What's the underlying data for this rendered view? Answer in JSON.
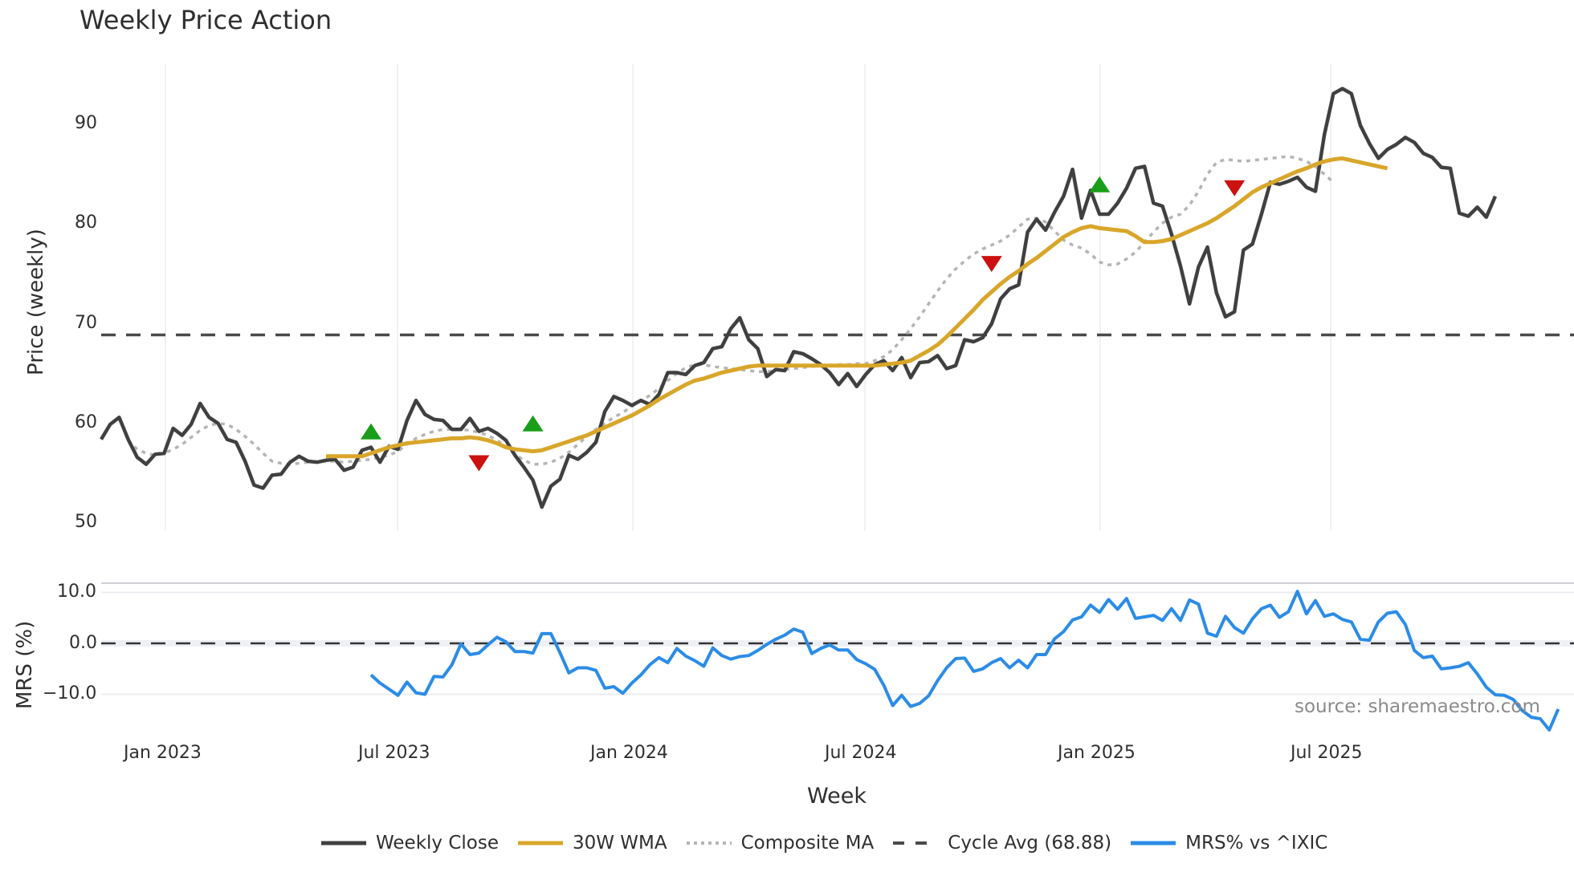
{
  "title": "Weekly Price Action",
  "source_note": "source: sharemaestro.com",
  "colors": {
    "close": "#404040",
    "wma": "#d9a62a",
    "composite": "#b5b5b5",
    "cycle": "#4a4a4a",
    "mrs": "#2b8ce6",
    "buy": "#1a9e1a",
    "sell": "#cc1111",
    "grid": "#ececf2"
  },
  "legend": [
    {
      "key": "close",
      "label": "Weekly Close",
      "style": "solid"
    },
    {
      "key": "wma",
      "label": "30W WMA",
      "style": "solid"
    },
    {
      "key": "composite",
      "label": "Composite MA",
      "style": "dot"
    },
    {
      "key": "cycle",
      "label": "Cycle Avg (68.88)",
      "style": "dash"
    },
    {
      "key": "mrs",
      "label": "MRS% vs ^IXIC",
      "style": "solid"
    }
  ],
  "chart_data": [
    {
      "type": "line",
      "title": "Weekly Price Action",
      "xlabel": "Week",
      "ylabel": "Price (weekly)",
      "ylim": [
        49,
        96
      ],
      "yticks": [
        50,
        60,
        70,
        80,
        90
      ],
      "xticks": [
        "Jan 2023",
        "Jul 2023",
        "Jan 2024",
        "Jul 2024",
        "Jan 2025",
        "Jul 2025"
      ],
      "grid": true,
      "x_start": "2022-11 (approx, week 0)",
      "weeks": 152,
      "cycle_avg": 68.88,
      "series": [
        {
          "name": "Weekly Close",
          "start_week": 0,
          "values": [
            58.4,
            59.9,
            60.6,
            58.4,
            56.6,
            55.9,
            56.9,
            57.0,
            59.5,
            58.8,
            59.9,
            62.0,
            60.6,
            60.0,
            58.4,
            58.1,
            56.2,
            53.8,
            53.5,
            54.8,
            54.9,
            56.1,
            56.7,
            56.2,
            56.1,
            56.3,
            56.4,
            55.3,
            55.6,
            57.3,
            57.6,
            56.1,
            57.7,
            57.4,
            60.3,
            62.3,
            60.9,
            60.4,
            60.3,
            59.4,
            59.4,
            60.5,
            59.2,
            59.5,
            59.0,
            58.3,
            56.8,
            55.6,
            54.3,
            51.6,
            53.7,
            54.4,
            56.8,
            56.4,
            57.1,
            58.1,
            61.2,
            62.7,
            62.3,
            61.8,
            62.3,
            61.9,
            62.9,
            65.1,
            65.1,
            64.9,
            65.8,
            66.1,
            67.5,
            67.7,
            69.5,
            70.6,
            68.4,
            67.5,
            64.7,
            65.4,
            65.3,
            67.2,
            67.0,
            66.5,
            65.9,
            65.1,
            63.9,
            65.0,
            63.7,
            64.9,
            65.9,
            66.3,
            65.3,
            66.6,
            64.6,
            66.1,
            66.2,
            66.8,
            65.5,
            65.8,
            68.4,
            68.2,
            68.6,
            70.0,
            72.5,
            73.5,
            73.9,
            79.2,
            80.5,
            79.4,
            81.2,
            82.8,
            85.5,
            80.6,
            83.4,
            81.0,
            81.0,
            82.1,
            83.6,
            85.6,
            85.8,
            82.1,
            81.8,
            79.0,
            75.8,
            72.0,
            75.7,
            77.7,
            73.1,
            70.7,
            71.2,
            77.4,
            78.0,
            81.0,
            84.2,
            84.0,
            84.3,
            84.7,
            83.7,
            83.3,
            89.0,
            93.1,
            93.6,
            93.1,
            89.9,
            88.1,
            86.6,
            87.5,
            88.0,
            88.7,
            88.2,
            87.1,
            86.7,
            85.7,
            85.6,
            81.1,
            80.8,
            81.7,
            80.7,
            82.8
          ]
        },
        {
          "name": "30W WMA",
          "start_week": 25,
          "values": [
            56.7,
            56.7,
            56.7,
            56.7,
            56.7,
            57.0,
            57.3,
            57.6,
            57.8,
            58.0,
            58.1,
            58.2,
            58.3,
            58.4,
            58.5,
            58.5,
            58.6,
            58.5,
            58.3,
            58.0,
            57.6,
            57.4,
            57.3,
            57.2,
            57.3,
            57.6,
            57.9,
            58.2,
            58.5,
            58.8,
            59.2,
            59.6,
            60.0,
            60.4,
            60.8,
            61.3,
            61.8,
            62.4,
            62.9,
            63.4,
            63.9,
            64.3,
            64.5,
            64.8,
            65.1,
            65.3,
            65.5,
            65.7,
            65.8,
            65.8,
            65.8,
            65.8,
            65.8,
            65.8,
            65.8,
            65.8,
            65.8,
            65.8,
            65.8,
            65.8,
            65.8,
            65.8,
            65.9,
            66.0,
            66.1,
            66.3,
            66.8,
            67.3,
            67.9,
            68.7,
            69.6,
            70.5,
            71.4,
            72.4,
            73.2,
            74.0,
            74.7,
            75.3,
            76.0,
            76.6,
            77.3,
            78.0,
            78.7,
            79.2,
            79.6,
            79.8,
            79.6,
            79.5,
            79.4,
            79.3,
            78.8,
            78.2,
            78.2,
            78.3,
            78.5,
            78.9,
            79.3,
            79.7,
            80.1,
            80.6,
            81.2,
            81.8,
            82.5,
            83.2,
            83.7,
            84.1,
            84.5,
            84.9,
            85.3,
            85.6,
            86.0,
            86.3,
            86.5,
            86.6,
            86.4,
            86.2,
            86.0,
            85.8,
            85.6
          ]
        },
        {
          "name": "Composite MA",
          "start_week": 3,
          "values": [
            58.3,
            57.4,
            57.0,
            56.8,
            57.0,
            57.4,
            57.9,
            58.6,
            59.3,
            59.8,
            60.0,
            59.9,
            59.4,
            58.7,
            57.9,
            57.0,
            56.2,
            56.0,
            55.9,
            56.0,
            56.1,
            56.2,
            56.2,
            56.2,
            56.1,
            56.2,
            56.3,
            56.4,
            56.6,
            56.8,
            57.2,
            57.9,
            58.5,
            58.9,
            59.2,
            59.4,
            59.4,
            59.4,
            59.3,
            59.1,
            58.8,
            58.3,
            57.7,
            56.9,
            56.3,
            55.9,
            55.9,
            56.1,
            56.5,
            57.1,
            57.9,
            58.7,
            59.4,
            60.0,
            60.6,
            61.1,
            61.7,
            62.3,
            62.8,
            63.5,
            64.3,
            65.0,
            65.6,
            65.9,
            65.9,
            65.7,
            65.6,
            65.5,
            65.4,
            65.3,
            65.2,
            65.2,
            65.3,
            65.4,
            65.5,
            65.6,
            65.7,
            65.8,
            65.8,
            65.9,
            65.9,
            66.0,
            66.0,
            66.3,
            66.7,
            67.4,
            68.4,
            69.5,
            70.7,
            72.0,
            73.3,
            74.5,
            75.5,
            76.3,
            77.0,
            77.5,
            77.9,
            78.3,
            78.9,
            79.7,
            80.5,
            80.6,
            80.2,
            79.3,
            78.4,
            77.9,
            77.6,
            77.0,
            76.2,
            75.9,
            76.0,
            76.5,
            77.2,
            78.2,
            79.2,
            80.1,
            80.7,
            81.0,
            81.9,
            83.3,
            85.0,
            86.2,
            86.5,
            86.4,
            86.3,
            86.4,
            86.5,
            86.6,
            86.7,
            86.8,
            86.6,
            86.3,
            85.8,
            85.0,
            84.2
          ]
        },
        {
          "name": "MRS% vs ^IXIC",
          "panel": "lower",
          "ylim": [
            -17.5,
            12
          ],
          "yticks": [
            -10.0,
            0.0,
            10.0
          ],
          "start_week": 30,
          "values": [
            -6.2,
            -7.8,
            -9.0,
            -10.2,
            -7.6,
            -9.7,
            -10.0,
            -6.5,
            -6.6,
            -4.2,
            -0.1,
            -2.2,
            -1.9,
            -0.3,
            1.2,
            0.3,
            -1.6,
            -1.6,
            -1.9,
            1.9,
            1.9,
            -1.8,
            -5.8,
            -4.8,
            -4.8,
            -5.3,
            -8.8,
            -8.5,
            -9.8,
            -7.8,
            -6.2,
            -4.2,
            -2.8,
            -3.8,
            -1.0,
            -2.5,
            -3.4,
            -4.5,
            -0.9,
            -2.4,
            -3.1,
            -2.6,
            -2.4,
            -1.4,
            -0.2,
            0.8,
            1.6,
            2.8,
            2.2,
            -2.0,
            -1.0,
            -0.3,
            -1.3,
            -1.3,
            -3.2,
            -4.0,
            -5.1,
            -8.2,
            -12.2,
            -10.2,
            -12.4,
            -11.8,
            -10.3,
            -7.3,
            -4.8,
            -3.0,
            -2.9,
            -5.5,
            -5.0,
            -3.8,
            -3.0,
            -4.8,
            -3.3,
            -4.8,
            -2.2,
            -2.2,
            0.9,
            2.3,
            4.6,
            5.2,
            7.5,
            6.1,
            8.6,
            6.7,
            8.8,
            4.9,
            5.2,
            5.5,
            4.5,
            6.8,
            4.5,
            8.5,
            7.7,
            2.0,
            1.4,
            5.3,
            3.1,
            2.0,
            4.8,
            6.8,
            7.5,
            5.1,
            6.2,
            10.2,
            5.8,
            8.4,
            5.3,
            5.8,
            4.7,
            4.2,
            0.8,
            0.6,
            4.2,
            5.9,
            6.2,
            3.7,
            -1.4,
            -2.8,
            -2.5,
            -5.0,
            -4.8,
            -4.5,
            -3.8,
            -6.0,
            -8.6,
            -10.1,
            -10.2,
            -11.0,
            -13.2,
            -14.5,
            -14.8,
            -17.0,
            -12.9
          ]
        },
        {
          "name": "Cycle Avg (68.88)",
          "constant": 68.88
        }
      ],
      "signals": [
        {
          "type": "buy",
          "week": 30,
          "price": 59.2
        },
        {
          "type": "sell",
          "week": 42,
          "price": 56.0
        },
        {
          "type": "buy",
          "week": 48,
          "price": 60.0
        },
        {
          "type": "sell",
          "week": 99,
          "price": 76.0
        },
        {
          "type": "buy",
          "week": 111,
          "price": 84.0
        },
        {
          "type": "sell",
          "week": 126,
          "price": 83.6
        }
      ]
    }
  ],
  "axes": {
    "price_ylabel": "Price (weekly)",
    "mrs_ylabel": "MRS (%)",
    "xlabel": "Week",
    "price_ticks": [
      "90",
      "80",
      "70",
      "60",
      "50"
    ],
    "mrs_ticks": [
      "10.0",
      "0.0",
      "−10.0"
    ],
    "x_ticks": [
      "Jan 2023",
      "Jul 2023",
      "Jan 2024",
      "Jul 2024",
      "Jan 2025",
      "Jul 2025"
    ]
  }
}
